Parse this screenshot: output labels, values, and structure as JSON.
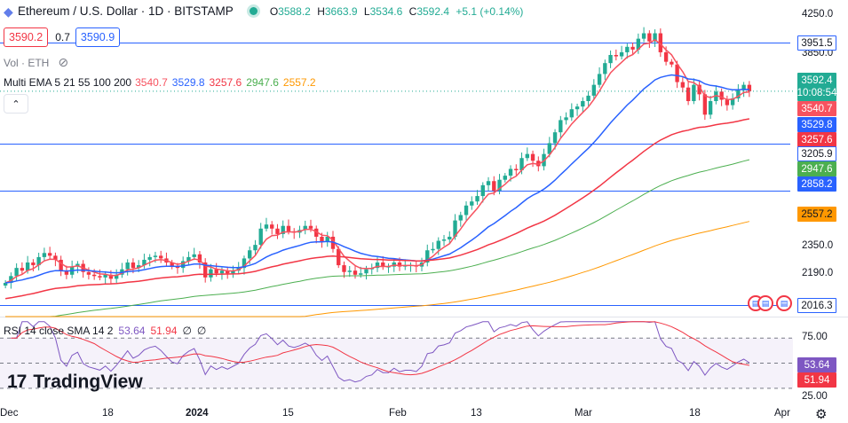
{
  "header": {
    "title": "Ethereum / U.S. Dollar · 1D · BITSTAMP",
    "ohlc": [
      {
        "label": "O",
        "value": "3588.2"
      },
      {
        "label": "H",
        "value": "3663.9"
      },
      {
        "label": "L",
        "value": "3534.6"
      },
      {
        "label": "C",
        "value": "3592.4"
      }
    ],
    "change": "+5.1 (+0.14%)",
    "sell_price": "3590.2",
    "spread": "0.7",
    "buy_price": "3590.9",
    "volume_label": "Vol · ETH",
    "ema_label": "Multi EMA 5 21 55 100 200",
    "ema_values": [
      {
        "value": "3540.7",
        "color": "#f7525f"
      },
      {
        "value": "3529.8",
        "color": "#2962ff"
      },
      {
        "value": "3257.6",
        "color": "#f23645"
      },
      {
        "value": "2947.6",
        "color": "#4caf50"
      },
      {
        "value": "2557.2",
        "color": "#ff9800"
      }
    ],
    "collapse_icon": "chevron-up-icon"
  },
  "rsi": {
    "label": "RSI 14 close SMA 14 2",
    "values": [
      {
        "value": "53.64",
        "color": "#7e57c2"
      },
      {
        "value": "51.94",
        "color": "#f23645"
      },
      {
        "value": "∅",
        "color": "#131722"
      },
      {
        "value": "∅",
        "color": "#131722"
      }
    ]
  },
  "brand": {
    "name": "TradingView"
  },
  "price_axis": {
    "labels": [
      "4250.0",
      "3850.0",
      "2350.0",
      "2190.0"
    ],
    "tags": [
      {
        "text": "3951.5",
        "bg": "#ffffff",
        "fg": "#131722",
        "border": "#2962ff",
        "value": 3951.5
      },
      {
        "text": "3540.7",
        "bg": "#f7525f",
        "fg": "#ffffff",
        "value": 3540.7
      },
      {
        "text": "3529.8",
        "bg": "#2962ff",
        "fg": "#ffffff",
        "value": 3529.8
      },
      {
        "text": "3257.6",
        "bg": "#f23645",
        "fg": "#ffffff",
        "value": 3257.6
      },
      {
        "text": "3205.9",
        "bg": "#ffffff",
        "fg": "#131722",
        "border": "#2962ff",
        "value": 3205.9
      },
      {
        "text": "2947.6",
        "bg": "#4caf50",
        "fg": "#ffffff",
        "value": 2947.6
      },
      {
        "text": "2858.2",
        "bg": "#2962ff",
        "fg": "#ffffff",
        "value": 2858.2
      },
      {
        "text": "2557.2",
        "bg": "#ff9800",
        "fg": "#131722",
        "value": 2557.2
      },
      {
        "text": "2016.3",
        "bg": "#ffffff",
        "fg": "#131722",
        "border": "#2962ff",
        "value": 2016.3
      }
    ],
    "last_price": "3592.4",
    "countdown": "10:08:54",
    "rsi_labels": [
      "75.00",
      "25.00"
    ],
    "rsi_tags": [
      {
        "text": "53.64",
        "bg": "#7e57c2"
      },
      {
        "text": "51.94",
        "bg": "#f23645"
      }
    ]
  },
  "time_axis": [
    "Dec",
    "18",
    "2024",
    "15",
    "Feb",
    "13",
    "Mar",
    "18",
    "Apr"
  ],
  "settings_icon": "gear-icon",
  "colors": {
    "up": "#22ab94",
    "down": "#f23645",
    "hline": "#2962ff"
  },
  "chart_data": {
    "type": "candlestick",
    "title": "Ethereum / U.S. Dollar · 1D · BITSTAMP",
    "ylim": [
      1980,
      4300
    ],
    "horizontal_levels": [
      3951.5,
      3205.9,
      2858.2,
      2016.3
    ],
    "candles_close": [
      2180,
      2230,
      2290,
      2270,
      2330,
      2310,
      2370,
      2400,
      2380,
      2350,
      2270,
      2240,
      2300,
      2320,
      2260,
      2240,
      2230,
      2220,
      2240,
      2210,
      2240,
      2280,
      2330,
      2290,
      2310,
      2350,
      2370,
      2380,
      2360,
      2330,
      2300,
      2290,
      2340,
      2370,
      2390,
      2330,
      2220,
      2280,
      2250,
      2270,
      2250,
      2270,
      2290,
      2360,
      2420,
      2460,
      2580,
      2610,
      2580,
      2540,
      2600,
      2560,
      2550,
      2570,
      2600,
      2580,
      2520,
      2480,
      2520,
      2430,
      2310,
      2260,
      2270,
      2240,
      2250,
      2280,
      2290,
      2330,
      2300,
      2300,
      2330,
      2300,
      2310,
      2310,
      2300,
      2330,
      2420,
      2430,
      2490,
      2500,
      2520,
      2640,
      2680,
      2750,
      2780,
      2820,
      2900,
      2930,
      2860,
      2940,
      2970,
      3020,
      3010,
      3100,
      3130,
      3080,
      3040,
      3130,
      3210,
      3290,
      3380,
      3400,
      3460,
      3480,
      3520,
      3560,
      3640,
      3720,
      3800,
      3860,
      3850,
      3880,
      3920,
      3900,
      3980,
      4020,
      3960,
      4020,
      3880,
      3810,
      3790,
      3660,
      3620,
      3520,
      3640,
      3570,
      3420,
      3520,
      3590,
      3530,
      3490,
      3540,
      3600,
      3640,
      3592.4
    ],
    "ema_series": [
      {
        "name": "EMA 5",
        "color": "#f7525f",
        "last": 3540.7
      },
      {
        "name": "EMA 21",
        "color": "#2962ff",
        "last": 3529.8
      },
      {
        "name": "EMA 55",
        "color": "#f23645",
        "last": 3257.6
      },
      {
        "name": "EMA 100",
        "color": "#4caf50",
        "last": 2947.6
      },
      {
        "name": "EMA 200",
        "color": "#ff9800",
        "last": 2557.2
      }
    ],
    "rsi": {
      "ylim": [
        20,
        85
      ],
      "bands": [
        70,
        50,
        30
      ],
      "rsi_last": 53.64,
      "sma_last": 51.94
    },
    "xticks": [
      "Dec",
      "18",
      "2024",
      "15",
      "Feb",
      "13",
      "Mar",
      "18",
      "Apr"
    ]
  }
}
